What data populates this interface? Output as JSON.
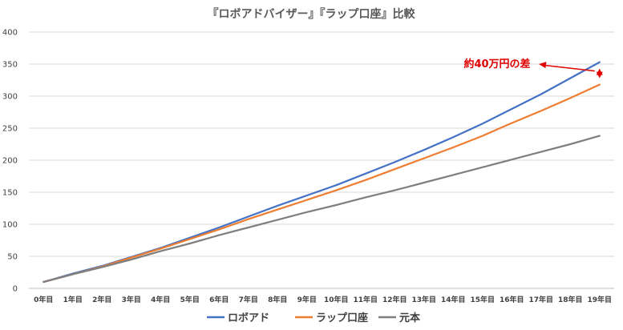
{
  "chart_data": {
    "type": "line",
    "title": "『ロボアドバイザー』『ラップ口座』比較",
    "categories": [
      "0年目",
      "1年目",
      "2年目",
      "3年目",
      "4年目",
      "5年目",
      "6年目",
      "7年目",
      "8年目",
      "9年目",
      "10年目",
      "11年目",
      "12年目",
      "13年目",
      "14年目",
      "15年目",
      "16年目",
      "17年目",
      "18年目",
      "19年目"
    ],
    "ylim": [
      0,
      400
    ],
    "yticks": [
      0,
      50,
      100,
      150,
      200,
      250,
      300,
      350,
      400
    ],
    "grid": true,
    "legend_position": "bottom",
    "series": [
      {
        "name": "ロボアド",
        "color": "#4472c4",
        "values": [
          10,
          23,
          35,
          49,
          63,
          79,
          95,
          112,
          129,
          145,
          161,
          179,
          197,
          216,
          236,
          257,
          280,
          303,
          328,
          353
        ]
      },
      {
        "name": "ラップ口座",
        "color": "#ed7d31",
        "values": [
          10,
          22,
          34,
          48,
          62,
          77,
          92,
          108,
          123,
          138,
          153,
          169,
          186,
          203,
          220,
          238,
          258,
          277,
          297,
          318
        ]
      },
      {
        "name": "元本",
        "color": "#7f7f7f",
        "values": [
          10,
          22,
          33,
          45,
          58,
          70,
          83,
          95,
          107,
          119,
          130,
          142,
          153,
          165,
          177,
          189,
          201,
          213,
          225,
          238
        ]
      }
    ],
    "annotation": {
      "text": "約40万円の差",
      "color": "#e00000",
      "from_value": 353,
      "to_value": 318,
      "category_index": 19
    }
  }
}
